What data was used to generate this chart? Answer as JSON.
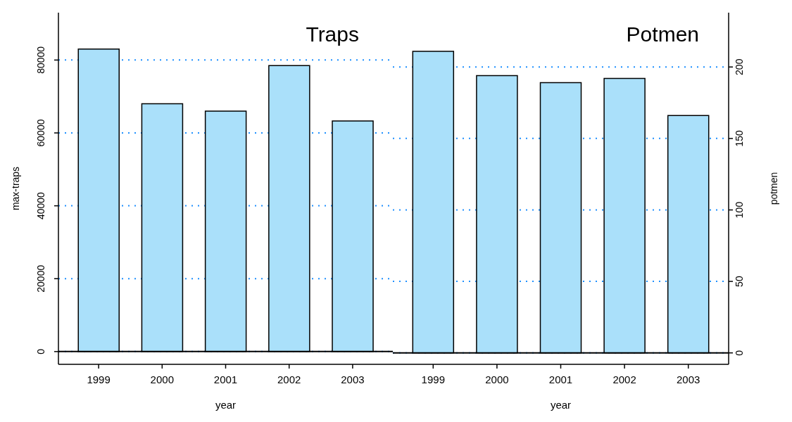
{
  "chart_data": [
    {
      "type": "bar",
      "title": "Traps",
      "xlabel": "year",
      "ylabel": "max-traps",
      "categories": [
        "1999",
        "2000",
        "2001",
        "2002",
        "2003"
      ],
      "series": [
        {
          "color": "#aae0fa",
          "values": [
            83000,
            68000,
            66000,
            78500,
            63300
          ]
        }
      ],
      "ylim": [
        -3500,
        93000
      ],
      "yticks": [
        0,
        20000,
        40000,
        60000,
        80000
      ],
      "grid": "y",
      "ref_lines": [
        {
          "axis": "y",
          "value": 0
        }
      ]
    },
    {
      "type": "bar",
      "title": "Potmen",
      "xlabel": "year",
      "y2label": "potmen",
      "categories": [
        "1999",
        "2000",
        "2001",
        "2002",
        "2003"
      ],
      "series": [
        {
          "color": "#aae0fa",
          "values": [
            211,
            194,
            189,
            192,
            166
          ],
          "axis": "y2"
        }
      ],
      "y2lim": [
        -8,
        238
      ],
      "y2ticks": [
        0,
        50,
        100,
        150,
        200
      ],
      "grid": "y",
      "ref_lines": [
        {
          "axis": "y2",
          "value": 0
        }
      ]
    }
  ]
}
